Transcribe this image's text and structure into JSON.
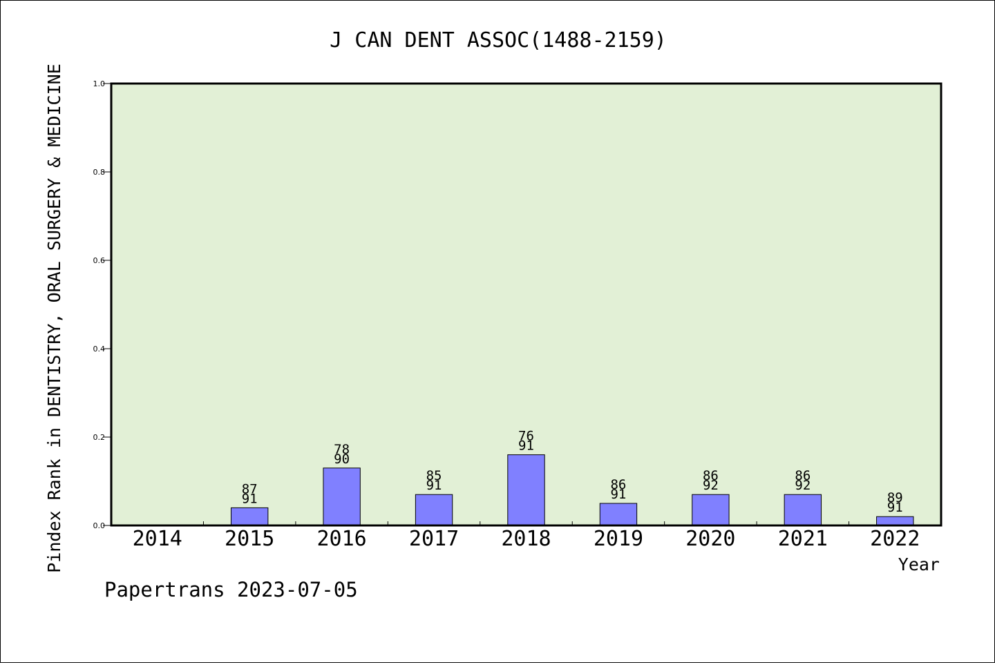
{
  "chart_data": {
    "type": "bar",
    "title": "J CAN DENT ASSOC(1488-2159)",
    "xlabel": "Year",
    "ylabel": "Pindex Rank in DENTISTRY, ORAL SURGERY & MEDICINE",
    "categories": [
      "2014",
      "2015",
      "2016",
      "2017",
      "2018",
      "2019",
      "2020",
      "2021",
      "2022"
    ],
    "values": [
      0,
      0.04,
      0.13,
      0.07,
      0.16,
      0.05,
      0.07,
      0.07,
      0.02
    ],
    "rank_labels": [
      "",
      "87",
      "78",
      "85",
      "76",
      "86",
      "86",
      "86",
      "89"
    ],
    "total_labels": [
      "",
      "91",
      "90",
      "91",
      "91",
      "91",
      "92",
      "92",
      "91"
    ],
    "ylim": [
      0,
      1.0
    ],
    "yticks": [
      "0.0",
      "0.2",
      "0.4",
      "0.6",
      "0.8",
      "1.0"
    ],
    "grid": false,
    "colors": {
      "plot_background": "#e2f0d6",
      "bar": "#8080ff",
      "bar_edge": "#000000"
    }
  },
  "footer": "Papertrans 2023-07-05"
}
